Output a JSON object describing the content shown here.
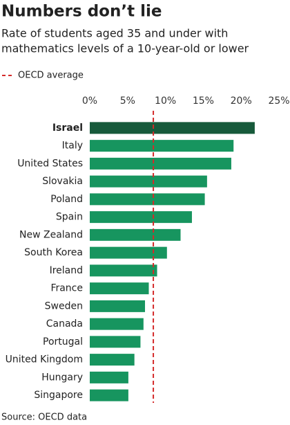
{
  "chart_data": {
    "type": "hbar",
    "title": "Numbers don’t lie",
    "subtitle": [
      "Rate of students aged 35 and under with",
      "mathematics levels of a 10-year-old or lower"
    ],
    "source": "Source: OECD data",
    "categories": [
      "Israel",
      "Italy",
      "United States",
      "Slovakia",
      "Poland",
      "Spain",
      "New Zealand",
      "South Korea",
      "Ireland",
      "France",
      "Sweden",
      "Canada",
      "Portugal",
      "United Kingdom",
      "Hungary",
      "Singapore"
    ],
    "values": [
      21.8,
      19.0,
      18.7,
      15.5,
      15.2,
      13.5,
      12.0,
      10.2,
      8.9,
      7.8,
      7.3,
      7.1,
      6.7,
      5.9,
      5.1,
      5.1
    ],
    "color": "#17955f",
    "colors": [
      "#175a3b",
      "#17955f",
      "#17955f",
      "#17955f",
      "#17955f",
      "#17955f",
      "#17955f",
      "#17955f",
      "#17955f",
      "#17955f",
      "#17955f",
      "#17955f",
      "#17955f",
      "#17955f",
      "#17955f",
      "#17955f"
    ],
    "xlim": [
      0,
      25
    ],
    "xticks": [
      {
        "value": 0,
        "label": "0%"
      },
      {
        "value": 5,
        "label": "5%"
      },
      {
        "value": 10,
        "label": "10%"
      },
      {
        "value": 15,
        "label": "15%"
      },
      {
        "value": 20,
        "label": "20%"
      },
      {
        "value": 25,
        "label": "25%"
      }
    ],
    "reference_line": {
      "label": "OECD average",
      "value": 8.4,
      "color": "#d42a2a"
    },
    "legend_position": "top-left"
  }
}
